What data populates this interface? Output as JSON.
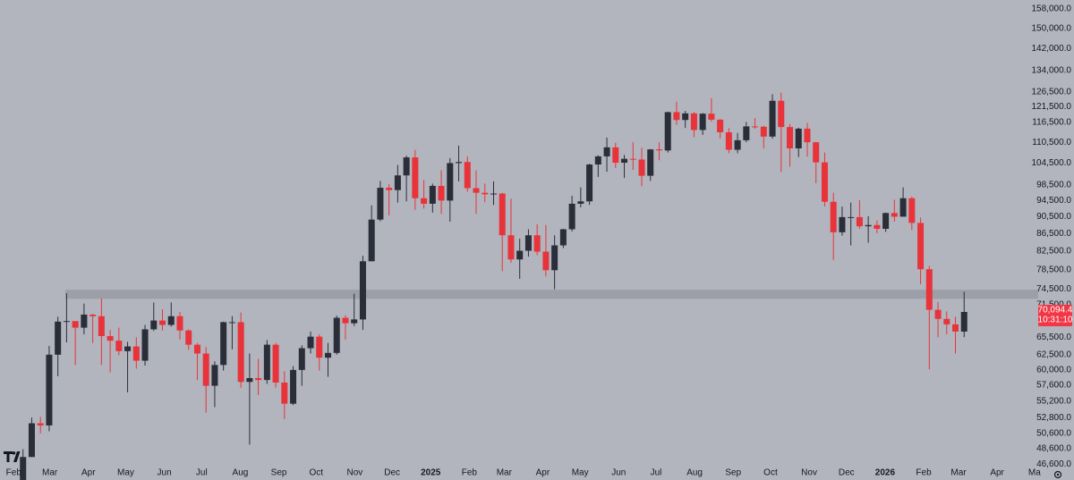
{
  "chart_data": {
    "type": "candlestick",
    "log_scale": true,
    "up_color": "#2a2e39",
    "down_color": "#e8333a",
    "zone_color": "#9c9fa8",
    "background": "#b2b5be",
    "xlim": [
      "2024-01-21",
      "2026-05-04"
    ],
    "ylim": [
      44660,
      161840
    ],
    "xticks": [
      {
        "value": "2024-02-01",
        "label": "Feb"
      },
      {
        "value": "2024-03-01",
        "label": "Mar"
      },
      {
        "value": "2024-04-01",
        "label": "Apr"
      },
      {
        "value": "2024-05-01",
        "label": "May"
      },
      {
        "value": "2024-06-01",
        "label": "Jun"
      },
      {
        "value": "2024-07-01",
        "label": "Jul"
      },
      {
        "value": "2024-08-01",
        "label": "Aug"
      },
      {
        "value": "2024-09-01",
        "label": "Sep"
      },
      {
        "value": "2024-10-01",
        "label": "Oct"
      },
      {
        "value": "2024-11-01",
        "label": "Nov"
      },
      {
        "value": "2024-12-01",
        "label": "Dec"
      },
      {
        "value": "2025-01-01",
        "label": "2025"
      },
      {
        "value": "2025-02-01",
        "label": "Feb"
      },
      {
        "value": "2025-03-01",
        "label": "Mar"
      },
      {
        "value": "2025-04-01",
        "label": "Apr"
      },
      {
        "value": "2025-05-01",
        "label": "May"
      },
      {
        "value": "2025-06-01",
        "label": "Jun"
      },
      {
        "value": "2025-07-01",
        "label": "Jul"
      },
      {
        "value": "2025-08-01",
        "label": "Aug"
      },
      {
        "value": "2025-09-01",
        "label": "Sep"
      },
      {
        "value": "2025-10-01",
        "label": "Oct"
      },
      {
        "value": "2025-11-01",
        "label": "Nov"
      },
      {
        "value": "2025-12-01",
        "label": "Dec"
      },
      {
        "value": "2026-01-01",
        "label": "2026"
      },
      {
        "value": "2026-02-01",
        "label": "Feb"
      },
      {
        "value": "2026-03-01",
        "label": "Mar"
      },
      {
        "value": "2026-04-01",
        "label": "Apr"
      },
      {
        "value": "2026-05-01",
        "label": "Ma"
      }
    ],
    "yticks": [
      {
        "value": 158000,
        "label": "158,000.0"
      },
      {
        "value": 150000,
        "label": "150,000.0"
      },
      {
        "value": 142000,
        "label": "142,000.0"
      },
      {
        "value": 134000,
        "label": "134,000.0"
      },
      {
        "value": 126500,
        "label": "126,500.0"
      },
      {
        "value": 121500,
        "label": "121,500.0"
      },
      {
        "value": 116500,
        "label": "116,500.0"
      },
      {
        "value": 110500,
        "label": "110,500.0"
      },
      {
        "value": 104500,
        "label": "104,500.0"
      },
      {
        "value": 98500,
        "label": "98,500.0"
      },
      {
        "value": 94500,
        "label": "94,500.0"
      },
      {
        "value": 90500,
        "label": "90,500.0"
      },
      {
        "value": 86500,
        "label": "86,500.0"
      },
      {
        "value": 82500,
        "label": "82,500.0"
      },
      {
        "value": 78500,
        "label": "78,500.0"
      },
      {
        "value": 74500,
        "label": "74,500.0"
      },
      {
        "value": 71500,
        "label": "71,500.0"
      },
      {
        "value": 65500,
        "label": "65,500.0"
      },
      {
        "value": 62500,
        "label": "62,500.0"
      },
      {
        "value": 60000,
        "label": "60,000.0"
      },
      {
        "value": 57600,
        "label": "57,600.0"
      },
      {
        "value": 55200,
        "label": "55,200.0"
      },
      {
        "value": 52800,
        "label": "52,800.0"
      },
      {
        "value": 50600,
        "label": "50,600.0"
      },
      {
        "value": 48600,
        "label": "48,600.0"
      },
      {
        "value": 46600,
        "label": "46,600.0"
      }
    ],
    "zones": [
      {
        "low": 72600,
        "high": 74400
      }
    ],
    "last_price": {
      "value": 70094.4,
      "label": "70,094.4"
    },
    "countdown": "10:31:10",
    "x": [
      "2024-02-05",
      "2024-02-12",
      "2024-02-19",
      "2024-02-26",
      "2024-03-04",
      "2024-03-11",
      "2024-03-18",
      "2024-03-25",
      "2024-04-01",
      "2024-04-08",
      "2024-04-15",
      "2024-04-22",
      "2024-04-29",
      "2024-05-06",
      "2024-05-13",
      "2024-05-20",
      "2024-05-27",
      "2024-06-03",
      "2024-06-10",
      "2024-06-17",
      "2024-06-24",
      "2024-07-01",
      "2024-07-08",
      "2024-07-15",
      "2024-07-22",
      "2024-07-29",
      "2024-08-05",
      "2024-08-12",
      "2024-08-19",
      "2024-08-26",
      "2024-09-02",
      "2024-09-09",
      "2024-09-16",
      "2024-09-23",
      "2024-09-30",
      "2024-10-07",
      "2024-10-14",
      "2024-10-21",
      "2024-10-28",
      "2024-11-04",
      "2024-11-11",
      "2024-11-18",
      "2024-11-25",
      "2024-12-02",
      "2024-12-09",
      "2024-12-16",
      "2024-12-23",
      "2024-12-30",
      "2025-01-06",
      "2025-01-13",
      "2025-01-20",
      "2025-01-27",
      "2025-02-03",
      "2025-02-10",
      "2025-02-17",
      "2025-02-24",
      "2025-03-03",
      "2025-03-10",
      "2025-03-17",
      "2025-03-24",
      "2025-03-31",
      "2025-04-07",
      "2025-04-14",
      "2025-04-21",
      "2025-04-28",
      "2025-05-05",
      "2025-05-12",
      "2025-05-19",
      "2025-05-26",
      "2025-06-02",
      "2025-06-09",
      "2025-06-16",
      "2025-06-23",
      "2025-06-30",
      "2025-07-07",
      "2025-07-14",
      "2025-07-21",
      "2025-07-28",
      "2025-08-04",
      "2025-08-11",
      "2025-08-18",
      "2025-08-25",
      "2025-09-01",
      "2025-09-08",
      "2025-09-15",
      "2025-09-22",
      "2025-09-29",
      "2025-10-06",
      "2025-10-13",
      "2025-10-20",
      "2025-10-27",
      "2025-11-03",
      "2025-11-10",
      "2025-11-17",
      "2025-11-24",
      "2025-12-01",
      "2025-12-08",
      "2025-12-15",
      "2025-12-22",
      "2025-12-29",
      "2026-01-05",
      "2026-01-12",
      "2026-01-19",
      "2026-01-26",
      "2026-02-02",
      "2026-02-09",
      "2026-02-16",
      "2026-02-23",
      "2026-03-02"
    ],
    "open": [
      43000,
      47500,
      52000,
      51700,
      62500,
      68300,
      68400,
      67200,
      69600,
      69300,
      65700,
      64900,
      63100,
      63900,
      61500,
      66900,
      68500,
      67700,
      69300,
      66700,
      64200,
      62700,
      57500,
      60800,
      68200,
      68200,
      58100,
      58700,
      58400,
      64200,
      58000,
      54800,
      60000,
      63600,
      65600,
      62000,
      62800,
      69000,
      68000,
      68700,
      80300,
      89800,
      97800,
      97200,
      101100,
      106100,
      95100,
      93700,
      98300,
      94500,
      104500,
      104800,
      97700,
      96500,
      96100,
      96300,
      86100,
      80700,
      82600,
      86100,
      82400,
      78400,
      83800,
      87500,
      93700,
      94300,
      104100,
      106400,
      109000,
      104600,
      105700,
      105500,
      101000,
      108400,
      108100,
      119800,
      117300,
      119400,
      114200,
      119300,
      117400,
      113500,
      108300,
      111100,
      115300,
      115200,
      112200,
      123500,
      115100,
      108700,
      114600,
      110500,
      104700,
      94200,
      86800,
      90400,
      90400,
      88200,
      88500,
      87600,
      91400,
      90500,
      95100,
      89000,
      78600,
      70500,
      68800,
      67800,
      66500
    ],
    "high": [
      48500,
      52800,
      52900,
      64000,
      69200,
      73700,
      68100,
      71700,
      69700,
      72700,
      66800,
      67200,
      64700,
      65500,
      67700,
      71900,
      70600,
      71900,
      70100,
      66900,
      64500,
      63800,
      61400,
      68300,
      69300,
      70000,
      62700,
      61800,
      65000,
      64500,
      59800,
      60600,
      64100,
      66500,
      66000,
      64500,
      69400,
      69500,
      73600,
      81500,
      93300,
      99600,
      98700,
      104000,
      106600,
      108300,
      99900,
      98900,
      102500,
      105900,
      109500,
      106400,
      102500,
      98900,
      99500,
      96500,
      95000,
      85300,
      87500,
      88700,
      88500,
      86100,
      87600,
      95700,
      97900,
      104300,
      106700,
      111900,
      110400,
      106800,
      110500,
      108900,
      108500,
      110500,
      119900,
      123200,
      120200,
      119800,
      119500,
      124400,
      117600,
      114800,
      113300,
      116700,
      117900,
      115500,
      125700,
      126200,
      116000,
      114900,
      116400,
      110600,
      107500,
      96500,
      93000,
      94000,
      94600,
      90600,
      89600,
      91500,
      94700,
      97900,
      95500,
      90300,
      79300,
      72000,
      70200,
      69200,
      74000
    ],
    "low": [
      42800,
      47500,
      50600,
      50900,
      59000,
      64600,
      60800,
      66000,
      64500,
      60800,
      59600,
      62400,
      56500,
      60200,
      60700,
      66600,
      66700,
      67400,
      65100,
      63300,
      58400,
      53500,
      54300,
      59900,
      63400,
      57200,
      49100,
      56100,
      57800,
      57200,
      52600,
      54600,
      57500,
      62700,
      59900,
      58900,
      62500,
      65100,
      67500,
      66800,
      80300,
      89400,
      90800,
      94000,
      94300,
      92200,
      92500,
      91500,
      91200,
      89300,
      99500,
      96800,
      91200,
      94100,
      93400,
      78200,
      80000,
      76600,
      81300,
      81600,
      77100,
      74500,
      83200,
      87000,
      92800,
      93400,
      100700,
      102100,
      103100,
      100400,
      102600,
      98200,
      99600,
      105300,
      107500,
      115800,
      114800,
      112000,
      112700,
      116800,
      111700,
      107300,
      107300,
      110500,
      114600,
      108700,
      111600,
      102000,
      103500,
      106200,
      106300,
      99000,
      93000,
      80600,
      86000,
      83800,
      87600,
      84400,
      86600,
      86900,
      89300,
      90500,
      87300,
      75500,
      60100,
      65500,
      66000,
      62700,
      65500
    ],
    "close": [
      47500,
      52000,
      51700,
      62500,
      68300,
      68400,
      67200,
      69600,
      69300,
      65700,
      64900,
      63100,
      63900,
      61500,
      66900,
      68500,
      67700,
      69300,
      66700,
      64200,
      62700,
      57500,
      60800,
      68200,
      68200,
      58100,
      58700,
      58400,
      64200,
      58000,
      54800,
      60000,
      63600,
      65600,
      62000,
      62800,
      69000,
      68000,
      68700,
      80300,
      89800,
      97800,
      97200,
      101100,
      106100,
      95100,
      93700,
      98300,
      94500,
      104500,
      104800,
      97700,
      96500,
      96100,
      96300,
      86100,
      80700,
      82600,
      86100,
      82400,
      78400,
      83800,
      87500,
      93700,
      94300,
      104100,
      106400,
      109000,
      104600,
      105700,
      105500,
      101000,
      108400,
      108100,
      119800,
      117300,
      119400,
      114200,
      119300,
      117400,
      113500,
      108300,
      111100,
      115300,
      115200,
      112200,
      123500,
      115100,
      108700,
      114600,
      110500,
      104700,
      94200,
      86800,
      90400,
      90400,
      88200,
      88500,
      87600,
      91400,
      90500,
      95100,
      89000,
      78600,
      70500,
      68800,
      67800,
      66500,
      70094.4
    ]
  }
}
